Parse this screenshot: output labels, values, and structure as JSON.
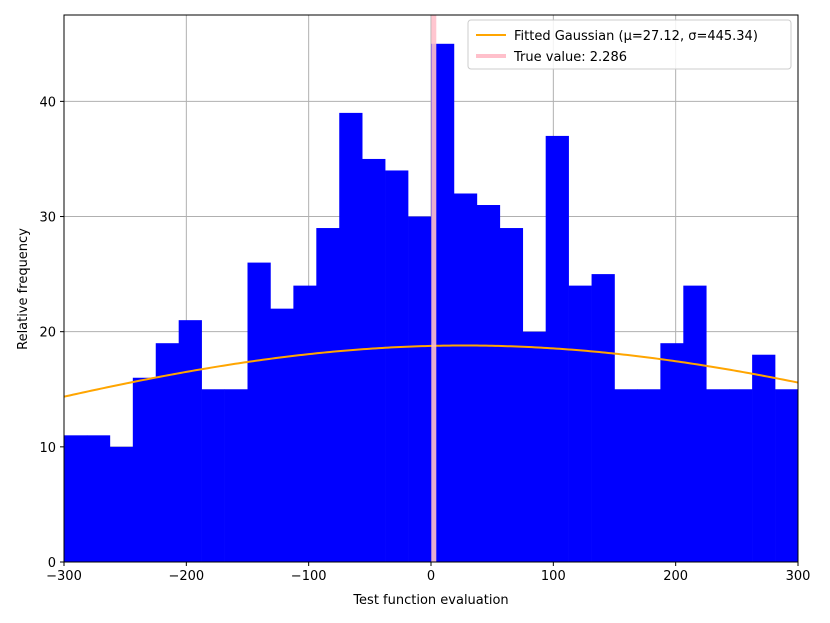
{
  "chart_data": {
    "type": "bar",
    "subtype": "histogram",
    "title": "",
    "xlabel": "Test function evaluation",
    "ylabel": "Relative frequency",
    "xlim": [
      -300,
      300
    ],
    "ylim": [
      0,
      47.5
    ],
    "grid": true,
    "legend_position": "top-right",
    "xticks": [
      -300,
      -200,
      -100,
      0,
      100,
      200,
      300
    ],
    "xtick_labels": [
      "−300",
      "−200",
      "−100",
      "0",
      "100",
      "200",
      "300"
    ],
    "yticks": [
      0,
      10,
      20,
      30,
      40
    ],
    "ytick_labels": [
      "0",
      "10",
      "20",
      "30",
      "40"
    ],
    "histogram": {
      "bin_start": -300,
      "bin_width": 18.75,
      "counts": [
        11,
        11,
        10,
        16,
        19,
        21,
        15,
        15,
        26,
        22,
        24,
        29,
        39,
        35,
        34,
        30,
        45,
        32,
        31,
        29,
        20,
        37,
        24,
        25,
        15,
        15,
        19,
        24,
        15,
        15,
        18,
        15
      ],
      "color": "#0000ff"
    },
    "series": [
      {
        "name": "Fitted Gaussian (μ=27.12, σ=445.34)",
        "type": "line",
        "mu": 27.12,
        "sigma": 445.34,
        "peak": 18.8,
        "color": "#ffa500"
      },
      {
        "name": "True value: 2.286",
        "type": "vline",
        "x": 2.286,
        "color": "#ffc0cb"
      }
    ]
  }
}
